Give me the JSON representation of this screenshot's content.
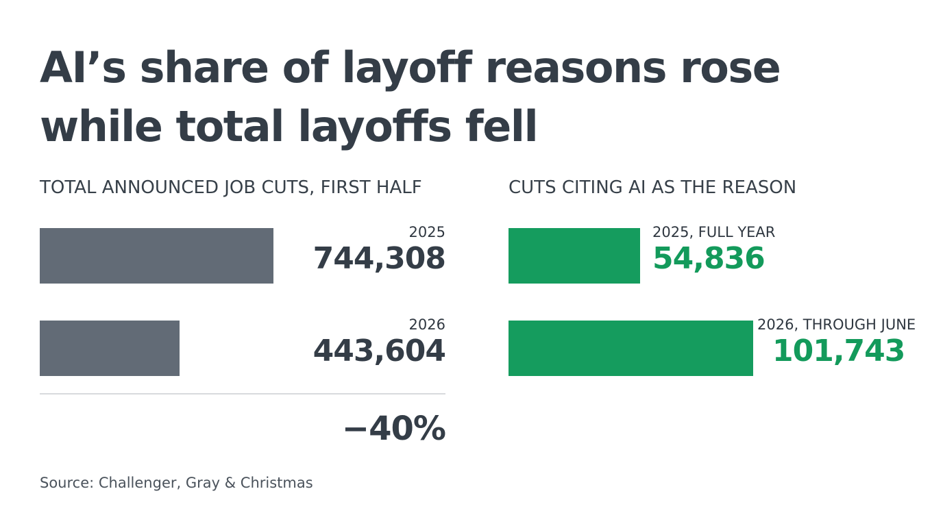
{
  "title_line1": "AI’s share of layoff reasons rose",
  "title_line2": "while total layoffs fell",
  "source": "Source: Challenger, Gray & Christmas",
  "colors": {
    "title": "#343d47",
    "gray_bar": "#626b76",
    "green_bar": "#159c5e",
    "green_text": "#139a5b",
    "divider": "#d8dadd"
  },
  "chart_data": [
    {
      "type": "bar",
      "orientation": "horizontal",
      "title": "TOTAL ANNOUNCED JOB CUTS, FIRST HALF",
      "categories": [
        "2025",
        "2026"
      ],
      "values": [
        744308,
        443604
      ],
      "value_labels": [
        "744,308",
        "443,604"
      ],
      "change_label": "−40%",
      "bar_color": "#626b76"
    },
    {
      "type": "bar",
      "orientation": "horizontal",
      "title": "CUTS CITING AI AS THE REASON",
      "categories": [
        "2025, FULL YEAR",
        "2026, THROUGH JUNE"
      ],
      "values": [
        54836,
        101743
      ],
      "value_labels": [
        "54,836",
        "101,743"
      ],
      "bar_color": "#159c5e"
    }
  ]
}
